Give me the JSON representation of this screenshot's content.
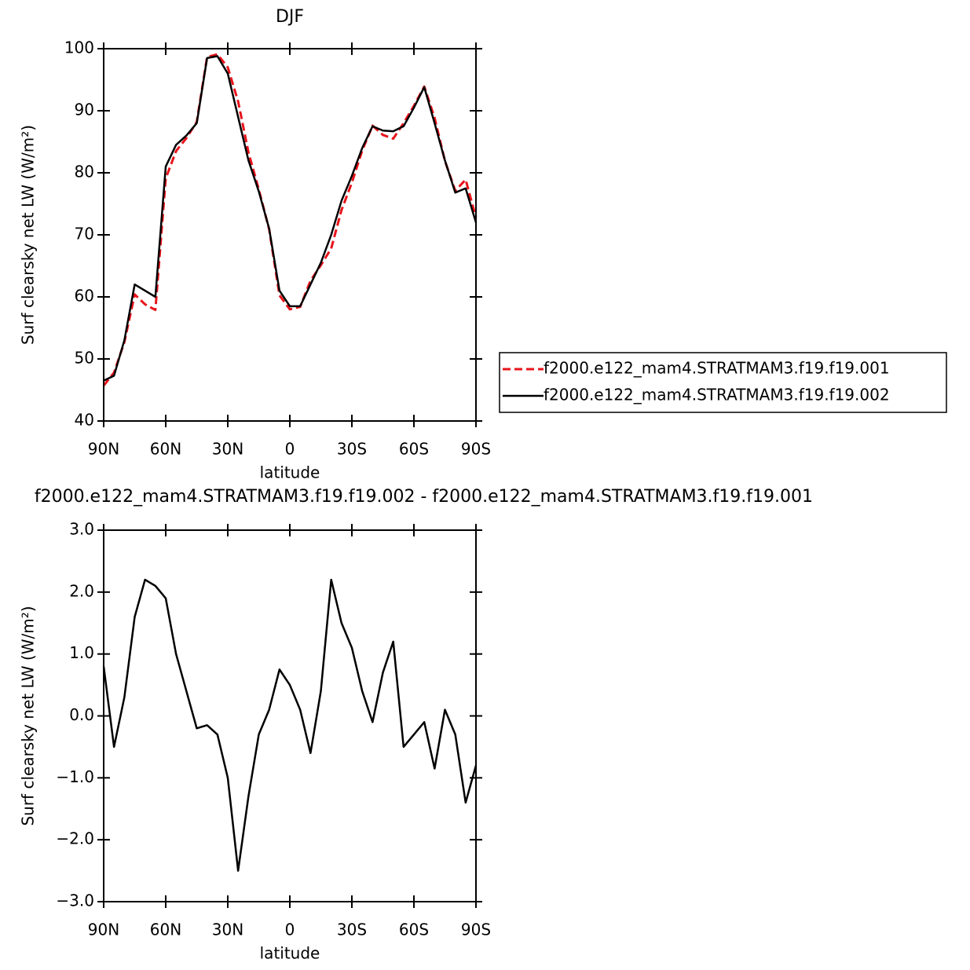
{
  "chart_data": [
    {
      "type": "line",
      "title": "DJF",
      "xlabel": "latitude",
      "ylabel": "Surf clearsky net LW (W/m²)",
      "x": [
        90,
        85,
        80,
        75,
        70,
        65,
        60,
        55,
        50,
        45,
        40,
        35,
        30,
        25,
        20,
        15,
        10,
        5,
        0,
        -5,
        -10,
        -15,
        -20,
        -25,
        -30,
        -35,
        -40,
        -45,
        -50,
        -55,
        -60,
        -65,
        -70,
        -75,
        -80,
        -85,
        -90
      ],
      "series": [
        {
          "name": "f2000.e122_mam4.STRATMAM3.f19.f19.001",
          "color": "#e8141b",
          "dash": true,
          "values": [
            45.7,
            47.8,
            52.7,
            60.4,
            58.8,
            57.9,
            79.1,
            83.5,
            85.6,
            88.2,
            98.65,
            99.1,
            97,
            91.5,
            83.3,
            77.3,
            70.9,
            60.25,
            58,
            58.4,
            62.6,
            65.1,
            67.8,
            74,
            78.4,
            83.6,
            87.6,
            86.1,
            85.5,
            88,
            90.8,
            93.9,
            88.85,
            81.9,
            77.1,
            78.9,
            72.8
          ]
        },
        {
          "name": "f2000.e122_mam4.STRATMAM3.f19.f19.002",
          "color": "#000000",
          "dash": false,
          "values": [
            46.5,
            47.3,
            53,
            62,
            61,
            60,
            81,
            84.5,
            86,
            88,
            98.5,
            98.8,
            96,
            89,
            82,
            77,
            71,
            61,
            58.5,
            58.5,
            62,
            65.5,
            70,
            75.5,
            79.5,
            84,
            87.5,
            86.8,
            86.7,
            87.5,
            90.5,
            93.8,
            88,
            82,
            76.8,
            77.5,
            72
          ]
        }
      ],
      "xlim": [
        90,
        -90
      ],
      "xticks": [
        {
          "value": 90,
          "label": "90N"
        },
        {
          "value": 60,
          "label": "60N"
        },
        {
          "value": 30,
          "label": "30N"
        },
        0,
        {
          "value": -30,
          "label": "30S"
        },
        {
          "value": -60,
          "label": "60S"
        },
        {
          "value": -90,
          "label": "90S"
        }
      ],
      "ylim": [
        40,
        100
      ],
      "yticks": [
        40,
        50,
        60,
        70,
        80,
        90,
        100
      ],
      "legend": "right"
    },
    {
      "type": "line",
      "title": "f2000.e122_mam4.STRATMAM3.f19.f19.002 - f2000.e122_mam4.STRATMAM3.f19.f19.001",
      "xlabel": "latitude",
      "ylabel": "Surf clearsky net LW (W/m²)",
      "x": [
        90,
        85,
        80,
        75,
        70,
        65,
        60,
        55,
        50,
        45,
        40,
        35,
        30,
        25,
        20,
        15,
        10,
        5,
        0,
        -5,
        -10,
        -15,
        -20,
        -25,
        -30,
        -35,
        -40,
        -45,
        -50,
        -55,
        -60,
        -65,
        -70,
        -75,
        -80,
        -85,
        -90
      ],
      "series": [
        {
          "color": "#000000",
          "dash": false,
          "values": [
            0.8,
            -0.5,
            0.3,
            1.6,
            2.2,
            2.1,
            1.9,
            1.0,
            0.4,
            -0.2,
            -0.15,
            -0.3,
            -1.0,
            -2.5,
            -1.3,
            -0.3,
            0.1,
            0.75,
            0.5,
            0.1,
            -0.6,
            0.4,
            2.2,
            1.5,
            1.1,
            0.4,
            -0.1,
            0.7,
            1.2,
            -0.5,
            -0.3,
            -0.1,
            -0.85,
            0.1,
            -0.3,
            -1.4,
            -0.8
          ]
        }
      ],
      "xlim": [
        90,
        -90
      ],
      "xticks": [
        {
          "value": 90,
          "label": "90N"
        },
        {
          "value": 60,
          "label": "60N"
        },
        {
          "value": 30,
          "label": "30N"
        },
        0,
        {
          "value": -30,
          "label": "30S"
        },
        {
          "value": -60,
          "label": "60S"
        },
        {
          "value": -90,
          "label": "90S"
        }
      ],
      "ylim": [
        -3,
        3
      ],
      "yticks": [
        {
          "value": -3,
          "label": "−3.0"
        },
        {
          "value": -2,
          "label": "−2.0"
        },
        {
          "value": -1,
          "label": "−1.0"
        },
        {
          "value": 0,
          "label": "0.0"
        },
        {
          "value": 1,
          "label": "1.0"
        },
        {
          "value": 2,
          "label": "2.0"
        },
        {
          "value": 3,
          "label": "3.0"
        }
      ]
    }
  ]
}
